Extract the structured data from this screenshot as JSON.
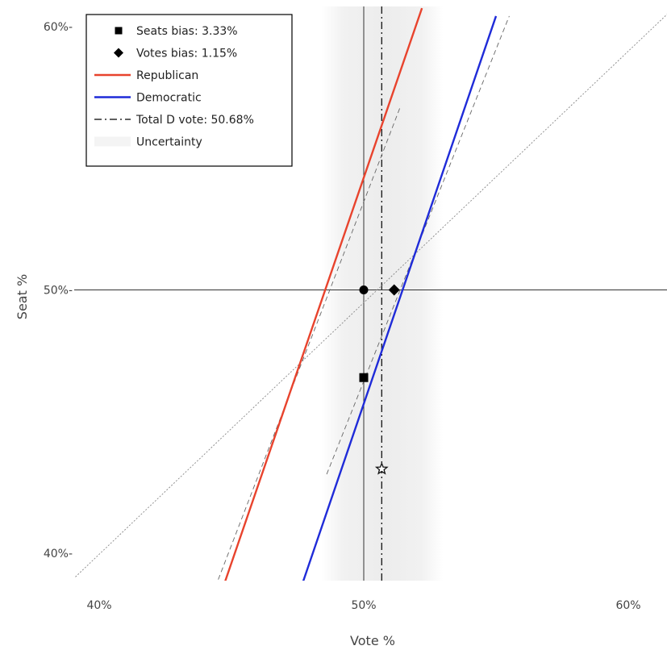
{
  "chart_data": {
    "type": "line",
    "xlabel": "Vote %",
    "ylabel": "Seat %",
    "xlim": [
      39,
      61.5
    ],
    "ylim": [
      39,
      60.5
    ],
    "x_ticks": [
      {
        "value": 40,
        "label": "40%"
      },
      {
        "value": 50,
        "label": "50%"
      },
      {
        "value": 60,
        "label": "60%"
      }
    ],
    "y_ticks": [
      {
        "value": 40,
        "label": "40%-"
      },
      {
        "value": 50,
        "label": "50%-"
      },
      {
        "value": 60,
        "label": "60%-"
      }
    ],
    "grid": false,
    "legend_position": "top-left",
    "legend": [
      {
        "key": "seats_bias",
        "label": "Seats bias: 3.33%",
        "symbol": "square",
        "color": "#000000"
      },
      {
        "key": "votes_bias",
        "label": "Votes bias: 1.15%",
        "symbol": "diamond",
        "color": "#000000"
      },
      {
        "key": "republican",
        "label": "Republican",
        "symbol": "line",
        "color": "#e8432d"
      },
      {
        "key": "democratic",
        "label": "Democratic",
        "symbol": "line",
        "color": "#1f2bd8"
      },
      {
        "key": "total_d_vote",
        "label": "Total D vote: 50.68%",
        "symbol": "dashdot",
        "color": "#000000"
      },
      {
        "key": "uncertainty",
        "label": "Uncertainty",
        "symbol": "band",
        "color": "#ececec"
      }
    ],
    "series": [
      {
        "key": "republican",
        "color": "#e8432d",
        "x": [
          44.75,
          52.2
        ],
        "y": [
          38.9,
          60.7
        ]
      },
      {
        "key": "democratic",
        "color": "#1f2bd8",
        "x": [
          47.7,
          55.0
        ],
        "y": [
          38.9,
          60.4
        ]
      },
      {
        "key": "republican_dashed",
        "color": "#666666",
        "x": [
          44.5,
          51.4
        ],
        "y": [
          39.0,
          57.0
        ]
      },
      {
        "key": "democratic_dashed",
        "color": "#666666",
        "x": [
          48.6,
          55.5
        ],
        "y": [
          43.0,
          60.4
        ]
      },
      {
        "key": "proportionality",
        "color": "#888888",
        "x": [
          39.1,
          61.5
        ],
        "y": [
          39.1,
          60.5
        ]
      }
    ],
    "uncertainty_band": {
      "x_min": 48.4,
      "x_max": 53.0
    },
    "total_d_vote": 50.68,
    "points": {
      "votes_bias": [
        {
          "x": 50.0,
          "y": 50.0,
          "shape": "circle"
        },
        {
          "x": 51.15,
          "y": 50.0,
          "shape": "diamond"
        }
      ],
      "seats_bias": [
        {
          "x": 50.0,
          "y": 46.67,
          "shape": "square"
        }
      ],
      "star": {
        "x": 50.68,
        "y": 43.2
      }
    },
    "reference_lines": {
      "x": 50,
      "y": 50
    }
  }
}
